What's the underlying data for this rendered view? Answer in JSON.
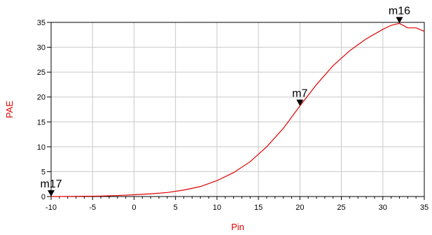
{
  "chart_data": {
    "type": "line",
    "title": "",
    "xlabel": "Pin",
    "ylabel": "PAE",
    "xlim": [
      -10,
      35
    ],
    "ylim": [
      0,
      35
    ],
    "x_ticks": [
      -10,
      -5,
      0,
      5,
      10,
      15,
      20,
      25,
      30,
      35
    ],
    "y_ticks": [
      0,
      5,
      10,
      15,
      20,
      25,
      30,
      35
    ],
    "grid": true,
    "colors": {
      "line": "#e00000",
      "grid": "#c8c8c8",
      "axis_label": "#e00000",
      "text": "#000000"
    },
    "series": [
      {
        "points": [
          [
            -10,
            0.0
          ],
          [
            -8,
            0.03
          ],
          [
            -6,
            0.05
          ],
          [
            -4,
            0.1
          ],
          [
            -2,
            0.2
          ],
          [
            0,
            0.35
          ],
          [
            2,
            0.55
          ],
          [
            4,
            0.8
          ],
          [
            6,
            1.3
          ],
          [
            8,
            2.0
          ],
          [
            10,
            3.2
          ],
          [
            12,
            4.8
          ],
          [
            14,
            7.0
          ],
          [
            16,
            10.0
          ],
          [
            18,
            13.7
          ],
          [
            20,
            18.2
          ],
          [
            22,
            22.5
          ],
          [
            24,
            26.3
          ],
          [
            26,
            29.3
          ],
          [
            28,
            31.7
          ],
          [
            30,
            33.6
          ],
          [
            31,
            34.4
          ],
          [
            32,
            34.8
          ],
          [
            33,
            33.9
          ],
          [
            34,
            33.9
          ],
          [
            35,
            33.2
          ]
        ]
      }
    ],
    "markers": [
      {
        "label": "m17",
        "x": -10,
        "y": 0.0
      },
      {
        "label": "m7",
        "x": 20,
        "y": 18.2
      },
      {
        "label": "m16",
        "x": 32,
        "y": 34.8
      }
    ]
  }
}
